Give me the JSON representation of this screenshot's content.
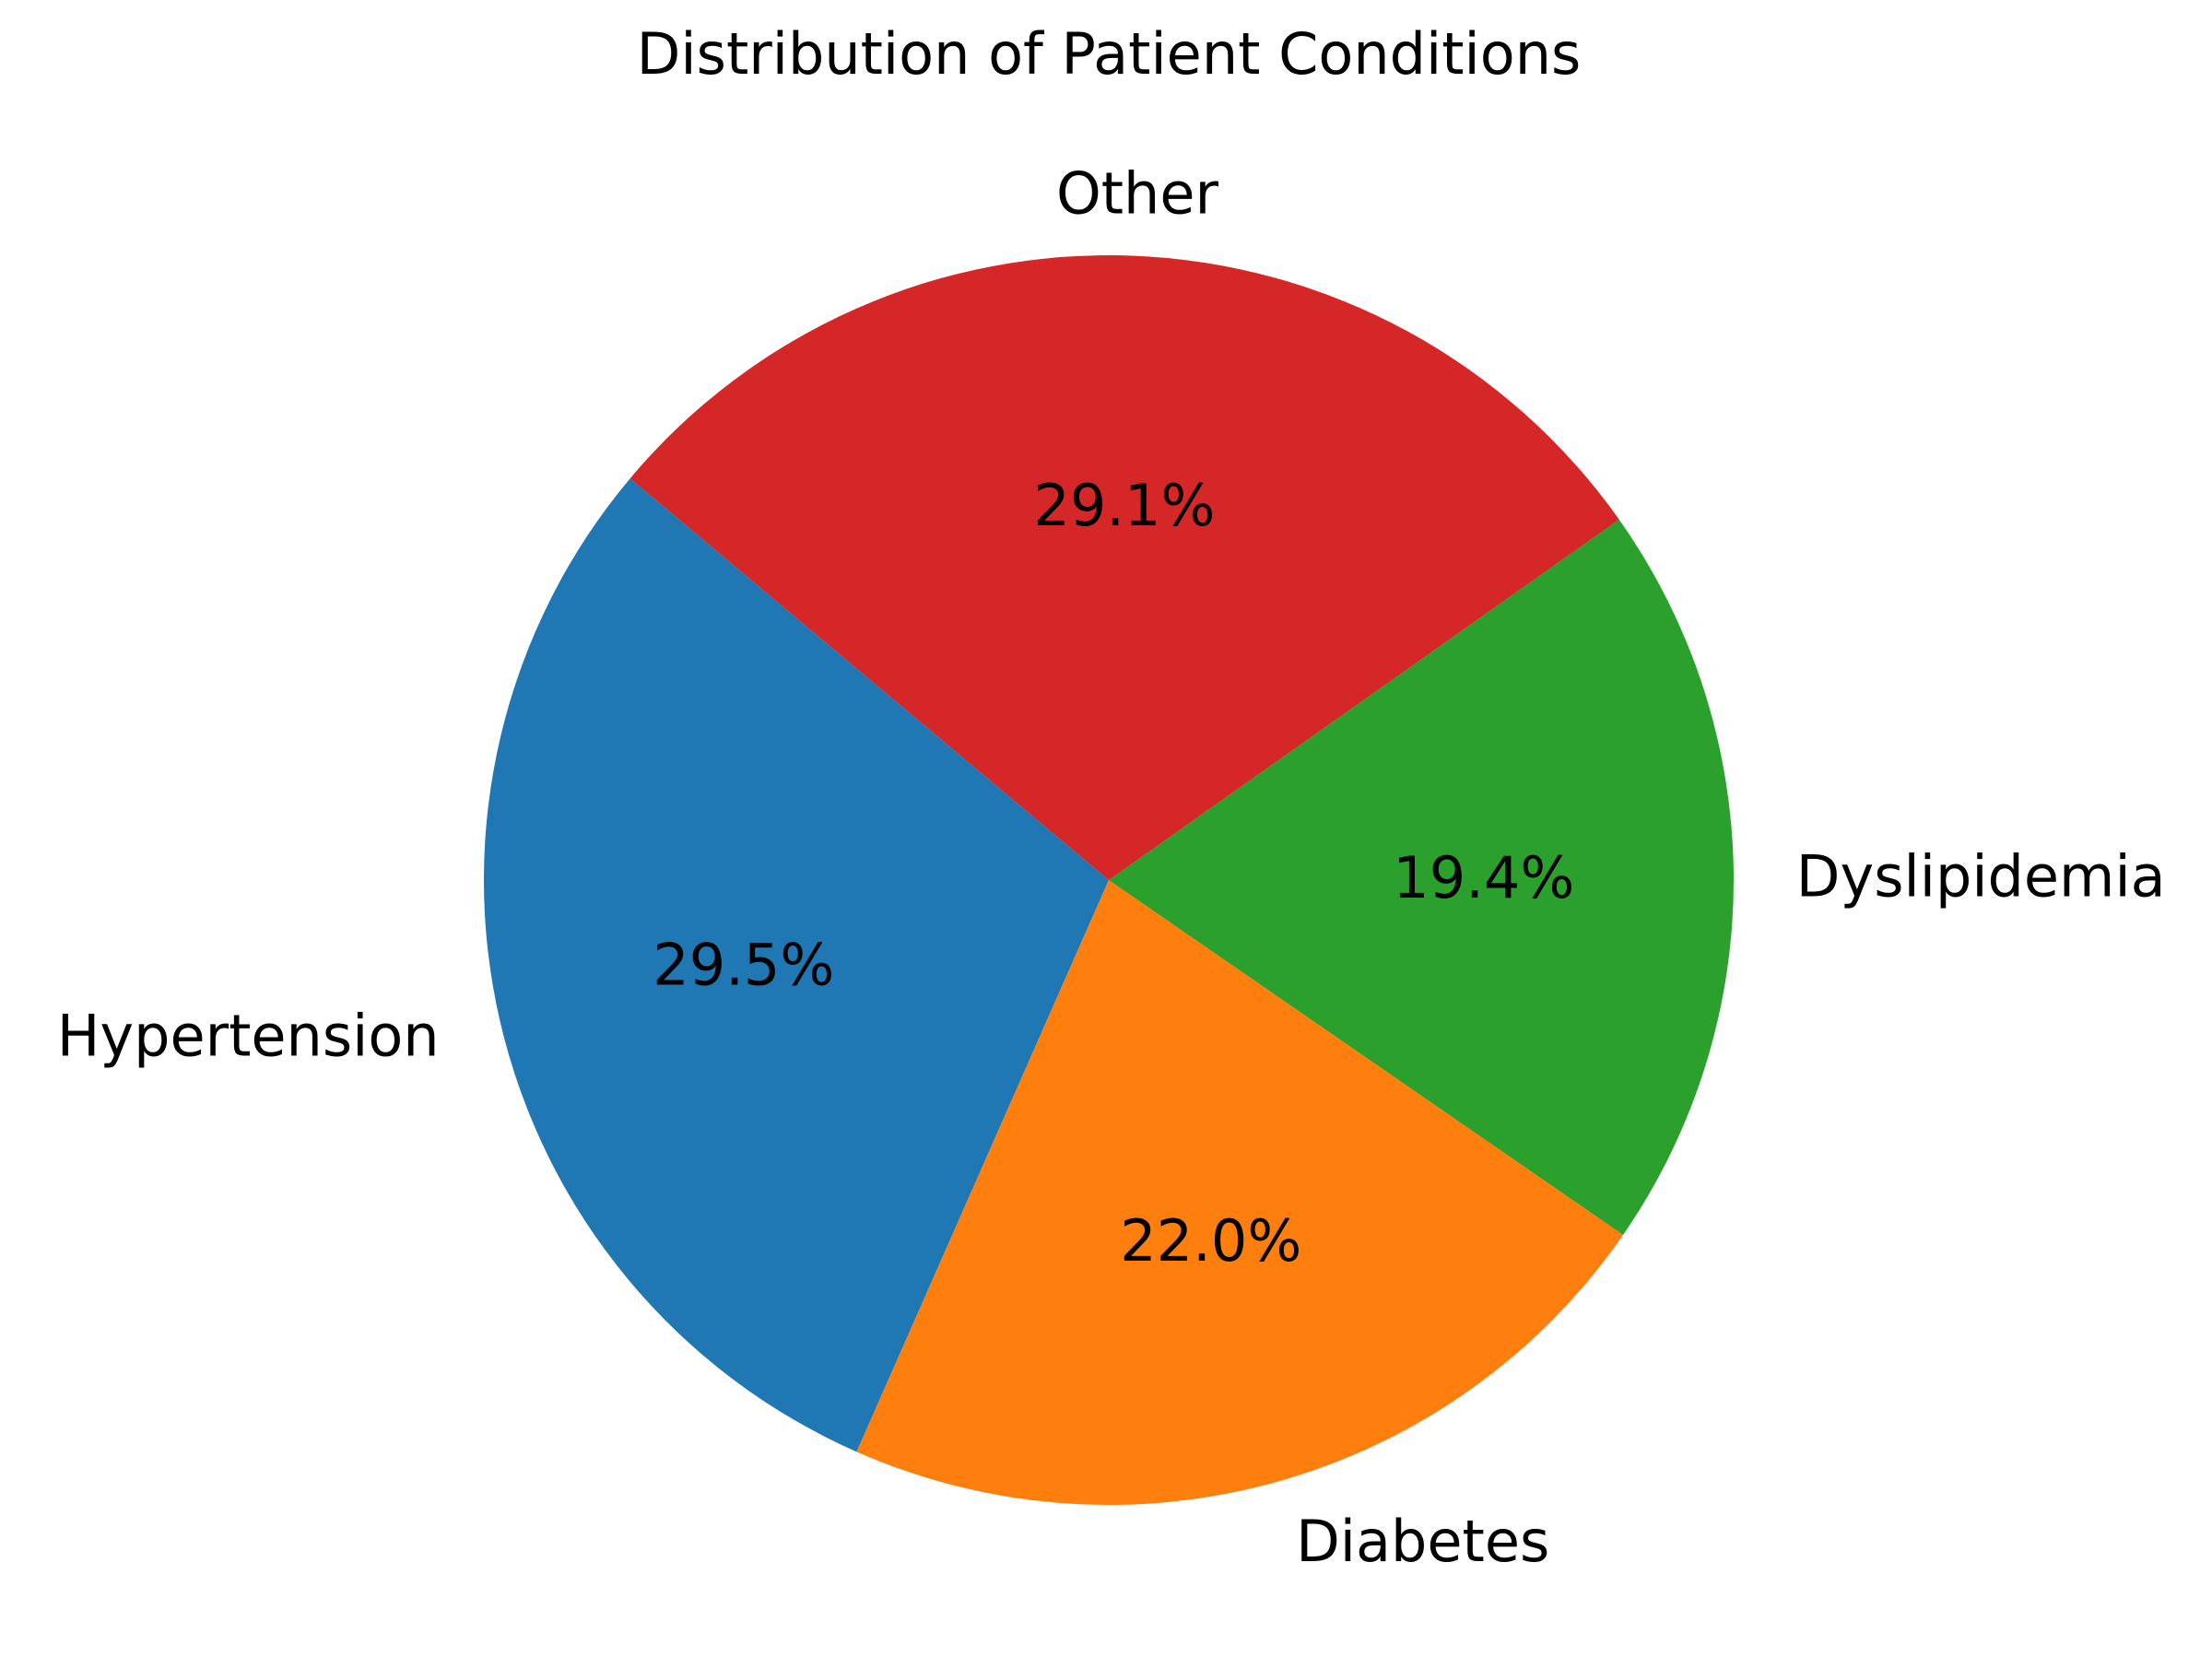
{
  "chart_data": {
    "type": "pie",
    "title": "Distribution of Patient Conditions",
    "start_angle_deg": 140,
    "direction": "counterclockwise",
    "slices": [
      {
        "label": "Hypertension",
        "value": 29.5,
        "pct_label": "29.5%",
        "color": "#1f77b4"
      },
      {
        "label": "Diabetes",
        "value": 22.0,
        "pct_label": "22.0%",
        "color": "#ff7f0e"
      },
      {
        "label": "Dyslipidemia",
        "value": 19.4,
        "pct_label": "19.4%",
        "color": "#2ca02c"
      },
      {
        "label": "Other",
        "value": 29.1,
        "pct_label": "29.1%",
        "color": "#d62728"
      }
    ]
  }
}
